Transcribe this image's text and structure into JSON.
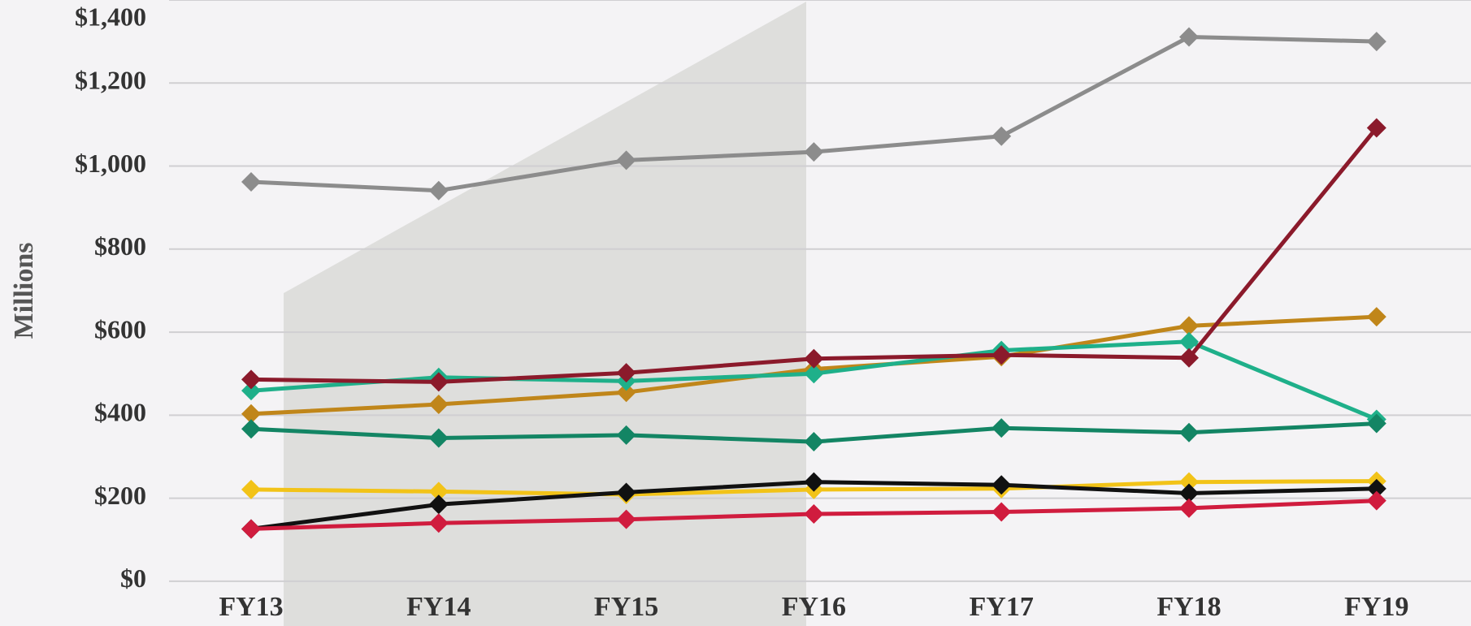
{
  "chart_data": {
    "type": "line",
    "y_label": "Millions",
    "categories": [
      "FY13",
      "FY14",
      "FY15",
      "FY16",
      "FY17",
      "FY18",
      "FY19"
    ],
    "series": [
      {
        "color": "#8c8c8c",
        "values": [
          962,
          941,
          1014,
          1034,
          1072,
          1311,
          1300
        ]
      },
      {
        "color": "#c0861a",
        "values": [
          403,
          426,
          455,
          511,
          541,
          615,
          637
        ]
      },
      {
        "color": "#1fb08a",
        "values": [
          459,
          491,
          482,
          500,
          556,
          577,
          390
        ]
      },
      {
        "color": "#8b1a2b",
        "values": [
          486,
          480,
          502,
          536,
          545,
          538,
          1092
        ]
      },
      {
        "color": "#138564",
        "values": [
          367,
          345,
          352,
          336,
          369,
          358,
          380
        ]
      },
      {
        "color": "#f2c318",
        "values": [
          221,
          216,
          209,
          221,
          223,
          239,
          241
        ]
      },
      {
        "color": "#111111",
        "values": [
          126,
          185,
          214,
          239,
          232,
          212,
          223
        ]
      },
      {
        "color": "#d01c3e",
        "values": [
          126,
          140,
          149,
          162,
          167,
          176,
          194
        ]
      }
    ],
    "ylim": [
      -100,
      1400
    ],
    "yticks": [
      {
        "value": 0,
        "label": "$0"
      },
      {
        "value": 200,
        "label": "$200"
      },
      {
        "value": 400,
        "label": "$400"
      },
      {
        "value": 600,
        "label": "$600"
      },
      {
        "value": 800,
        "label": "$800"
      },
      {
        "value": 1000,
        "label": "$1,000"
      },
      {
        "value": 1200,
        "label": "$1,200"
      },
      {
        "value": 1400,
        "label": "$1,400"
      }
    ],
    "grid": true
  }
}
